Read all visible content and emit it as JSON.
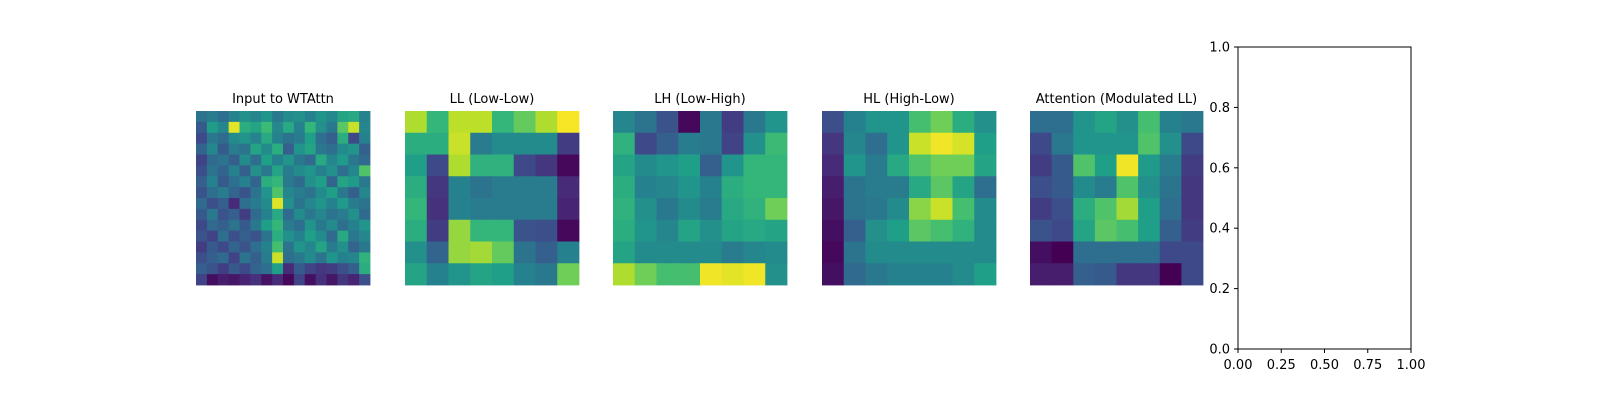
{
  "chart_data": [
    {
      "type": "heatmap",
      "title": "Input to WTAttn",
      "colormap": "viridis",
      "rows": 16,
      "cols": 16,
      "values": [
        [
          0.38,
          0.42,
          0.36,
          0.45,
          0.5,
          0.46,
          0.52,
          0.4,
          0.48,
          0.5,
          0.44,
          0.52,
          0.47,
          0.58,
          0.6,
          0.45
        ],
        [
          0.28,
          0.55,
          0.46,
          0.96,
          0.62,
          0.58,
          0.68,
          0.47,
          0.6,
          0.44,
          0.66,
          0.5,
          0.4,
          0.74,
          0.92,
          0.46
        ],
        [
          0.22,
          0.4,
          0.35,
          0.48,
          0.52,
          0.45,
          0.6,
          0.44,
          0.38,
          0.42,
          0.56,
          0.36,
          0.3,
          0.62,
          0.22,
          0.44
        ],
        [
          0.32,
          0.46,
          0.28,
          0.42,
          0.38,
          0.58,
          0.48,
          0.62,
          0.3,
          0.52,
          0.58,
          0.4,
          0.36,
          0.48,
          0.52,
          0.3
        ],
        [
          0.2,
          0.34,
          0.38,
          0.3,
          0.48,
          0.36,
          0.56,
          0.44,
          0.52,
          0.4,
          0.34,
          0.6,
          0.46,
          0.54,
          0.4,
          0.34
        ],
        [
          0.24,
          0.38,
          0.32,
          0.44,
          0.3,
          0.5,
          0.4,
          0.58,
          0.42,
          0.48,
          0.52,
          0.44,
          0.5,
          0.36,
          0.46,
          0.72
        ],
        [
          0.3,
          0.44,
          0.28,
          0.36,
          0.44,
          0.32,
          0.62,
          0.66,
          0.4,
          0.34,
          0.5,
          0.56,
          0.32,
          0.58,
          0.54,
          0.4
        ],
        [
          0.26,
          0.36,
          0.42,
          0.32,
          0.26,
          0.38,
          0.52,
          0.72,
          0.46,
          0.42,
          0.38,
          0.48,
          0.56,
          0.4,
          0.3,
          0.46
        ],
        [
          0.34,
          0.24,
          0.3,
          0.12,
          0.36,
          0.42,
          0.48,
          0.95,
          0.5,
          0.38,
          0.46,
          0.52,
          0.44,
          0.54,
          0.42,
          0.38
        ],
        [
          0.28,
          0.4,
          0.26,
          0.3,
          0.18,
          0.34,
          0.44,
          0.6,
          0.34,
          0.48,
          0.4,
          0.46,
          0.38,
          0.42,
          0.5,
          0.34
        ],
        [
          0.22,
          0.34,
          0.3,
          0.38,
          0.28,
          0.4,
          0.56,
          0.66,
          0.42,
          0.36,
          0.52,
          0.4,
          0.48,
          0.36,
          0.44,
          0.52
        ],
        [
          0.26,
          0.2,
          0.36,
          0.24,
          0.3,
          0.26,
          0.38,
          0.62,
          0.5,
          0.44,
          0.56,
          0.48,
          0.34,
          0.6,
          0.4,
          0.46
        ],
        [
          0.18,
          0.28,
          0.22,
          0.32,
          0.26,
          0.36,
          0.44,
          0.7,
          0.38,
          0.52,
          0.46,
          0.58,
          0.42,
          0.5,
          0.32,
          0.4
        ],
        [
          0.24,
          0.3,
          0.34,
          0.2,
          0.38,
          0.3,
          0.42,
          0.92,
          0.36,
          0.4,
          0.48,
          0.38,
          0.52,
          0.44,
          0.46,
          0.64
        ],
        [
          0.3,
          0.26,
          0.18,
          0.28,
          0.22,
          0.32,
          0.36,
          0.56,
          0.12,
          0.28,
          0.2,
          0.16,
          0.18,
          0.24,
          0.3,
          0.62
        ],
        [
          0.2,
          0.04,
          0.08,
          0.06,
          0.1,
          0.14,
          0.05,
          0.12,
          0.02,
          0.2,
          0.04,
          0.14,
          0.06,
          0.16,
          0.1,
          0.24
        ]
      ]
    },
    {
      "type": "heatmap",
      "title": "LL (Low-Low)",
      "colormap": "viridis",
      "rows": 8,
      "cols": 8,
      "values": [
        [
          0.88,
          0.66,
          0.9,
          0.9,
          0.66,
          0.76,
          0.88,
          0.99
        ],
        [
          0.62,
          0.62,
          0.92,
          0.42,
          0.48,
          0.48,
          0.48,
          0.18
        ],
        [
          0.56,
          0.22,
          0.88,
          0.64,
          0.64,
          0.22,
          0.16,
          0.02
        ],
        [
          0.62,
          0.16,
          0.44,
          0.38,
          0.42,
          0.42,
          0.42,
          0.12
        ],
        [
          0.66,
          0.14,
          0.44,
          0.42,
          0.42,
          0.42,
          0.42,
          0.1
        ],
        [
          0.62,
          0.18,
          0.84,
          0.66,
          0.66,
          0.26,
          0.24,
          0.02
        ],
        [
          0.5,
          0.32,
          0.84,
          0.86,
          0.76,
          0.38,
          0.3,
          0.44
        ],
        [
          0.58,
          0.44,
          0.52,
          0.58,
          0.56,
          0.44,
          0.4,
          0.78
        ]
      ]
    },
    {
      "type": "heatmap",
      "title": "LH (Low-High)",
      "colormap": "viridis",
      "rows": 8,
      "cols": 8,
      "values": [
        [
          0.46,
          0.38,
          0.26,
          0.02,
          0.4,
          0.18,
          0.4,
          0.52
        ],
        [
          0.64,
          0.22,
          0.3,
          0.42,
          0.4,
          0.2,
          0.5,
          0.68
        ],
        [
          0.58,
          0.48,
          0.52,
          0.56,
          0.3,
          0.52,
          0.66,
          0.66
        ],
        [
          0.62,
          0.44,
          0.46,
          0.52,
          0.44,
          0.62,
          0.66,
          0.66
        ],
        [
          0.64,
          0.5,
          0.4,
          0.48,
          0.42,
          0.6,
          0.64,
          0.78
        ],
        [
          0.62,
          0.52,
          0.46,
          0.58,
          0.5,
          0.58,
          0.6,
          0.58
        ],
        [
          0.58,
          0.48,
          0.48,
          0.48,
          0.48,
          0.42,
          0.46,
          0.48
        ],
        [
          0.88,
          0.78,
          0.7,
          0.7,
          0.98,
          0.96,
          0.98,
          0.5
        ]
      ]
    },
    {
      "type": "heatmap",
      "title": "HL (High-Low)",
      "colormap": "viridis",
      "rows": 8,
      "cols": 8,
      "values": [
        [
          0.24,
          0.44,
          0.52,
          0.52,
          0.7,
          0.78,
          0.62,
          0.5
        ],
        [
          0.16,
          0.46,
          0.36,
          0.52,
          0.92,
          0.98,
          0.94,
          0.56
        ],
        [
          0.12,
          0.52,
          0.42,
          0.6,
          0.72,
          0.78,
          0.78,
          0.58
        ],
        [
          0.08,
          0.38,
          0.42,
          0.42,
          0.6,
          0.74,
          0.58,
          0.36
        ],
        [
          0.06,
          0.38,
          0.4,
          0.48,
          0.82,
          0.92,
          0.7,
          0.48
        ],
        [
          0.04,
          0.3,
          0.5,
          0.56,
          0.74,
          0.7,
          0.64,
          0.48
        ],
        [
          0.02,
          0.38,
          0.48,
          0.48,
          0.48,
          0.48,
          0.48,
          0.48
        ],
        [
          0.04,
          0.34,
          0.4,
          0.44,
          0.44,
          0.44,
          0.48,
          0.56
        ]
      ]
    },
    {
      "type": "heatmap",
      "title": "Attention (Modulated LL)",
      "colormap": "viridis",
      "rows": 8,
      "cols": 8,
      "values": [
        [
          0.36,
          0.36,
          0.52,
          0.58,
          0.5,
          0.7,
          0.44,
          0.4
        ],
        [
          0.22,
          0.4,
          0.52,
          0.52,
          0.52,
          0.72,
          0.5,
          0.22
        ],
        [
          0.18,
          0.28,
          0.72,
          0.56,
          0.98,
          0.54,
          0.42,
          0.18
        ],
        [
          0.24,
          0.28,
          0.48,
          0.42,
          0.72,
          0.5,
          0.38,
          0.16
        ],
        [
          0.18,
          0.24,
          0.62,
          0.72,
          0.86,
          0.56,
          0.36,
          0.16
        ],
        [
          0.26,
          0.22,
          0.58,
          0.74,
          0.7,
          0.56,
          0.3,
          0.18
        ],
        [
          0.04,
          0.0,
          0.36,
          0.36,
          0.36,
          0.36,
          0.22,
          0.22
        ],
        [
          0.08,
          0.08,
          0.3,
          0.28,
          0.16,
          0.16,
          0.0,
          0.22
        ]
      ]
    },
    {
      "type": "scatter",
      "title": "",
      "xlabel": "",
      "ylabel": "",
      "xlim": [
        0.0,
        1.0
      ],
      "ylim": [
        0.0,
        1.0
      ],
      "x_ticks": [
        "0.00",
        "0.25",
        "0.50",
        "0.75",
        "1.00"
      ],
      "y_ticks": [
        "0.0",
        "0.2",
        "0.4",
        "0.6",
        "0.8",
        "1.0"
      ],
      "grid": false,
      "points": []
    }
  ]
}
